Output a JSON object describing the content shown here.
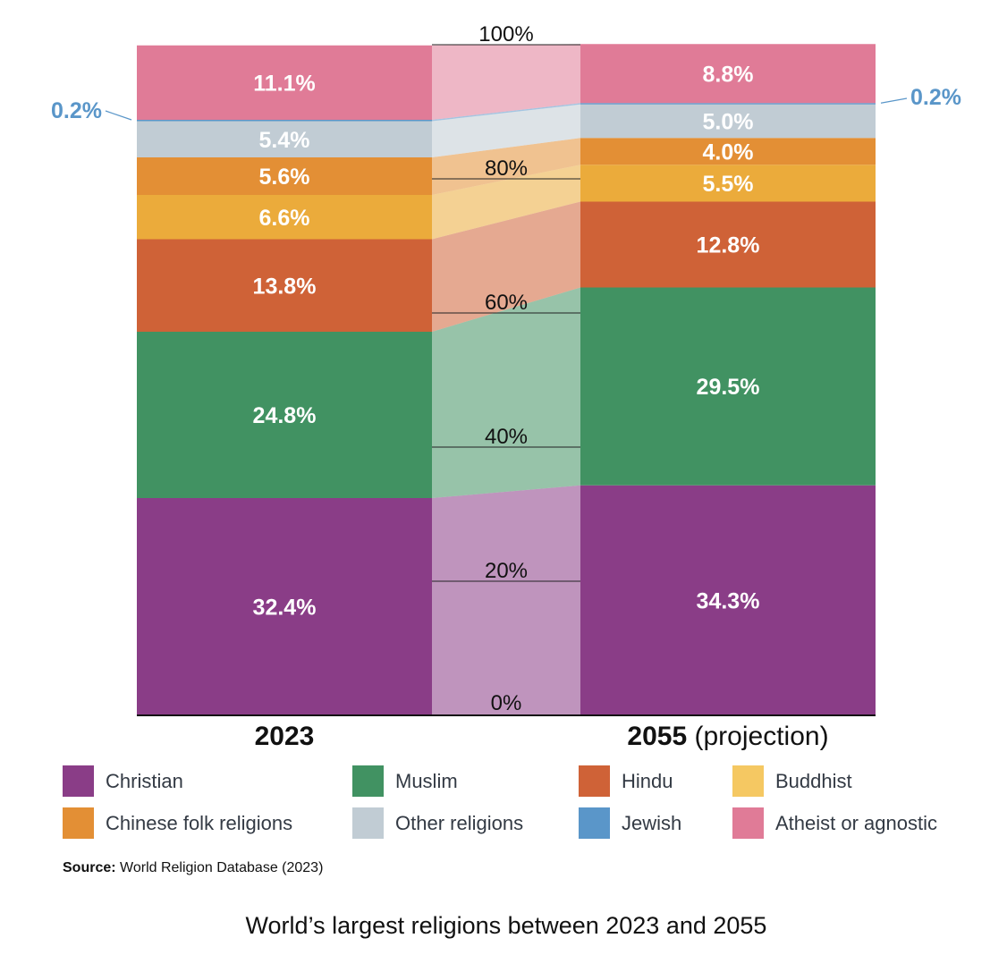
{
  "chart_data": {
    "type": "bar",
    "stacked": true,
    "normalized": true,
    "categories": [
      "2023",
      "2055 (projection)"
    ],
    "category_labels": [
      {
        "bold": "2023",
        "rest": ""
      },
      {
        "bold": "2055",
        "rest": " (projection)"
      }
    ],
    "series": [
      {
        "name": "Christian",
        "color": "#8a3d87",
        "values": [
          32.4,
          34.3
        ],
        "labels": [
          "32.4%",
          "34.3%"
        ]
      },
      {
        "name": "Muslim",
        "color": "#419262",
        "values": [
          24.8,
          29.5
        ],
        "labels": [
          "24.8%",
          "29.5%"
        ]
      },
      {
        "name": "Hindu",
        "color": "#cf6237",
        "values": [
          13.8,
          12.8
        ],
        "labels": [
          "13.8%",
          "12.8%"
        ]
      },
      {
        "name": "Buddhist",
        "color": "#ebab3b",
        "legend_color": "#f5c862",
        "values": [
          6.6,
          5.5
        ],
        "labels": [
          "6.6%",
          "5.5%"
        ]
      },
      {
        "name": "Chinese folk religions",
        "color": "#e38f35",
        "values": [
          5.6,
          4.0
        ],
        "labels": [
          "5.6%",
          "4.0%"
        ]
      },
      {
        "name": "Other religions",
        "color": "#c1ccd4",
        "values": [
          5.4,
          5.0
        ],
        "labels": [
          "5.4%",
          "5.0%"
        ]
      },
      {
        "name": "Jewish",
        "color": "#5a96c9",
        "values": [
          0.2,
          0.2
        ],
        "labels": [
          "0.2%",
          "0.2%"
        ]
      },
      {
        "name": "Atheist or agnostic",
        "color": "#e07b97",
        "values": [
          11.1,
          8.8
        ],
        "labels": [
          "11.1%",
          "8.8%"
        ]
      }
    ],
    "yticks": [
      "0%",
      "20%",
      "40%",
      "60%",
      "80%",
      "100%"
    ],
    "ylim": [
      0,
      100
    ],
    "legend_position": "bottom"
  },
  "source": {
    "label": "Source:",
    "text": " World Religion Database (2023)"
  },
  "title": "World’s largest religions between 2023 and 2055"
}
